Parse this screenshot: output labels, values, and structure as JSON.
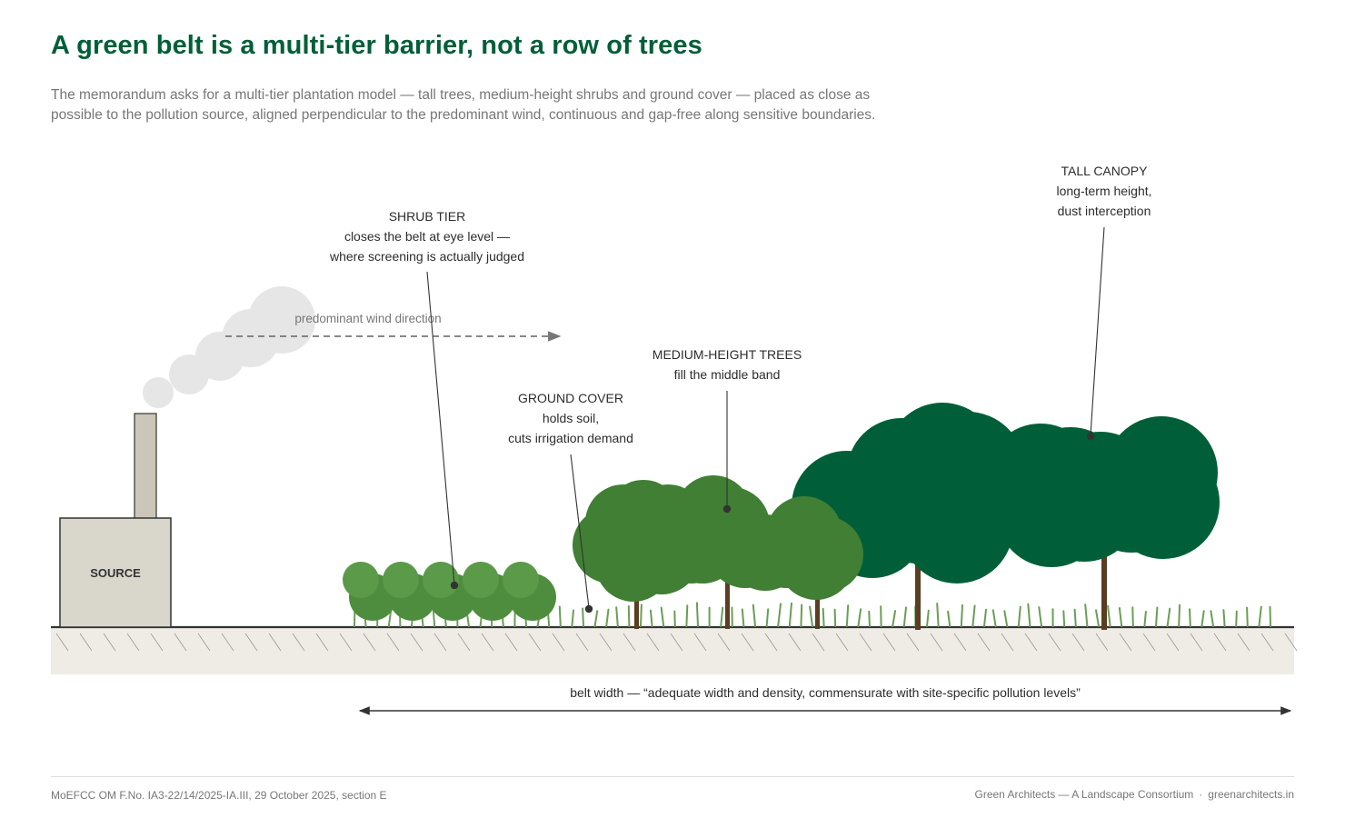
{
  "header": {
    "title": "A green belt is a multi-tier barrier, not a row of trees",
    "subtitle": "The memorandum asks for a multi-tier plantation model — tall trees, medium-height shrubs and ground cover — placed as close as possible to the pollution source, aligned perpendicular to the predominant wind, continuous and gap-free along sensitive boundaries."
  },
  "diagram": {
    "source_label": "SOURCE",
    "wind_label": "predominant wind direction",
    "callouts": {
      "shrub": [
        "SHRUB TIER",
        "closes the belt at eye level —",
        "where screening is actually judged"
      ],
      "ground": [
        "GROUND COVER",
        "holds soil,",
        "cuts irrigation demand"
      ],
      "medium": [
        "MEDIUM-HEIGHT TREES",
        "fill the middle band"
      ],
      "tall": [
        "TALL CANOPY",
        "long-term height,",
        "dust interception"
      ]
    },
    "belt_width_label": "belt width — “adequate width and density, commensurate with site-specific pollution levels”"
  },
  "footer": {
    "citation": "MoEFCC OM F.No. IA3-22/14/2025-IA.III, 29 October 2025, section E",
    "org": "Green Architects — A Landscape Consortium",
    "separator": "·",
    "website": "greenarchitects.in"
  },
  "colors": {
    "title": "#005f38",
    "tall_canopy": "#005f38",
    "medium_trees": "#407f34",
    "shrubs": "#5a9a48",
    "grass": "#6a9e55",
    "trunk": "#5a3d22",
    "ground": "#efece6",
    "factory": "#d9d6cc",
    "smoke": "#e6e6e6"
  }
}
